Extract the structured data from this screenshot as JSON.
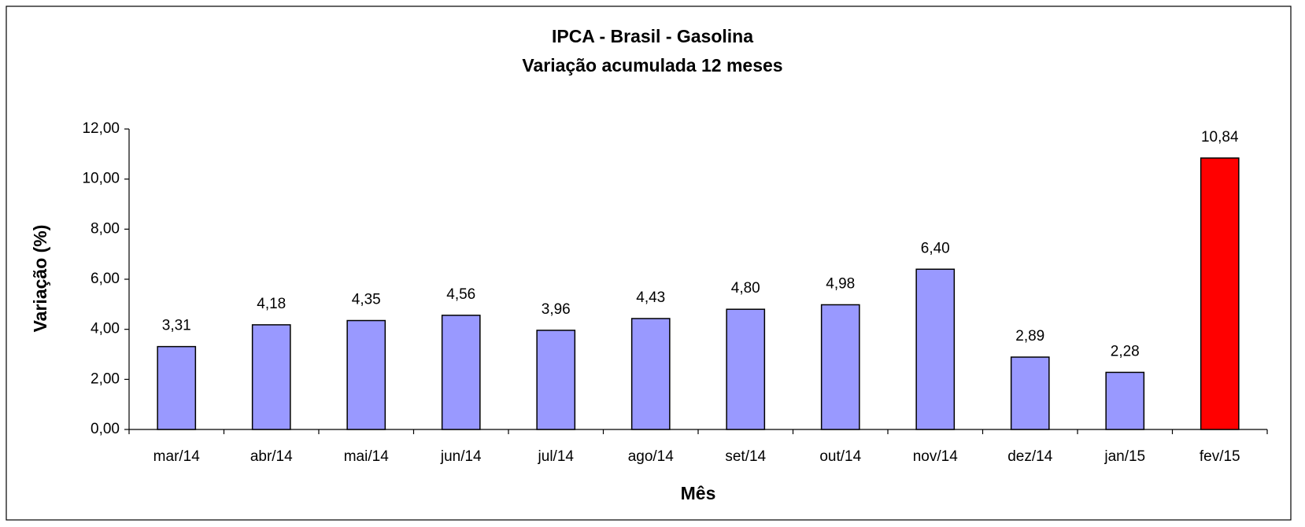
{
  "chart_data": {
    "type": "bar",
    "title": [
      "IPCA - Brasil - Gasolina",
      "Variação acumulada 12 meses"
    ],
    "x_label": "Mês",
    "y_label": "Variação (%)",
    "categories": [
      "mar/14",
      "abr/14",
      "mai/14",
      "jun/14",
      "jul/14",
      "ago/14",
      "set/14",
      "out/14",
      "nov/14",
      "dez/14",
      "jan/15",
      "fev/15"
    ],
    "values": [
      3.31,
      4.18,
      4.35,
      4.56,
      3.96,
      4.43,
      4.8,
      4.98,
      6.4,
      2.89,
      2.28,
      10.84
    ],
    "value_labels": [
      "3,31",
      "4,18",
      "4,35",
      "4,56",
      "3,96",
      "4,43",
      "4,80",
      "4,98",
      "6,40",
      "2,89",
      "2,28",
      "10,84"
    ],
    "colors": [
      "#9999ff",
      "#9999ff",
      "#9999ff",
      "#9999ff",
      "#9999ff",
      "#9999ff",
      "#9999ff",
      "#9999ff",
      "#9999ff",
      "#9999ff",
      "#9999ff",
      "#ff0000"
    ],
    "ylim": [
      0,
      12
    ],
    "yticks": [
      {
        "value": 0,
        "label": "0,00"
      },
      {
        "value": 2,
        "label": "2,00"
      },
      {
        "value": 4,
        "label": "4,00"
      },
      {
        "value": 6,
        "label": "6,00"
      },
      {
        "value": 8,
        "label": "8,00"
      },
      {
        "value": 10,
        "label": "10,00"
      },
      {
        "value": 12,
        "label": "12,00"
      }
    ],
    "grid": false
  }
}
